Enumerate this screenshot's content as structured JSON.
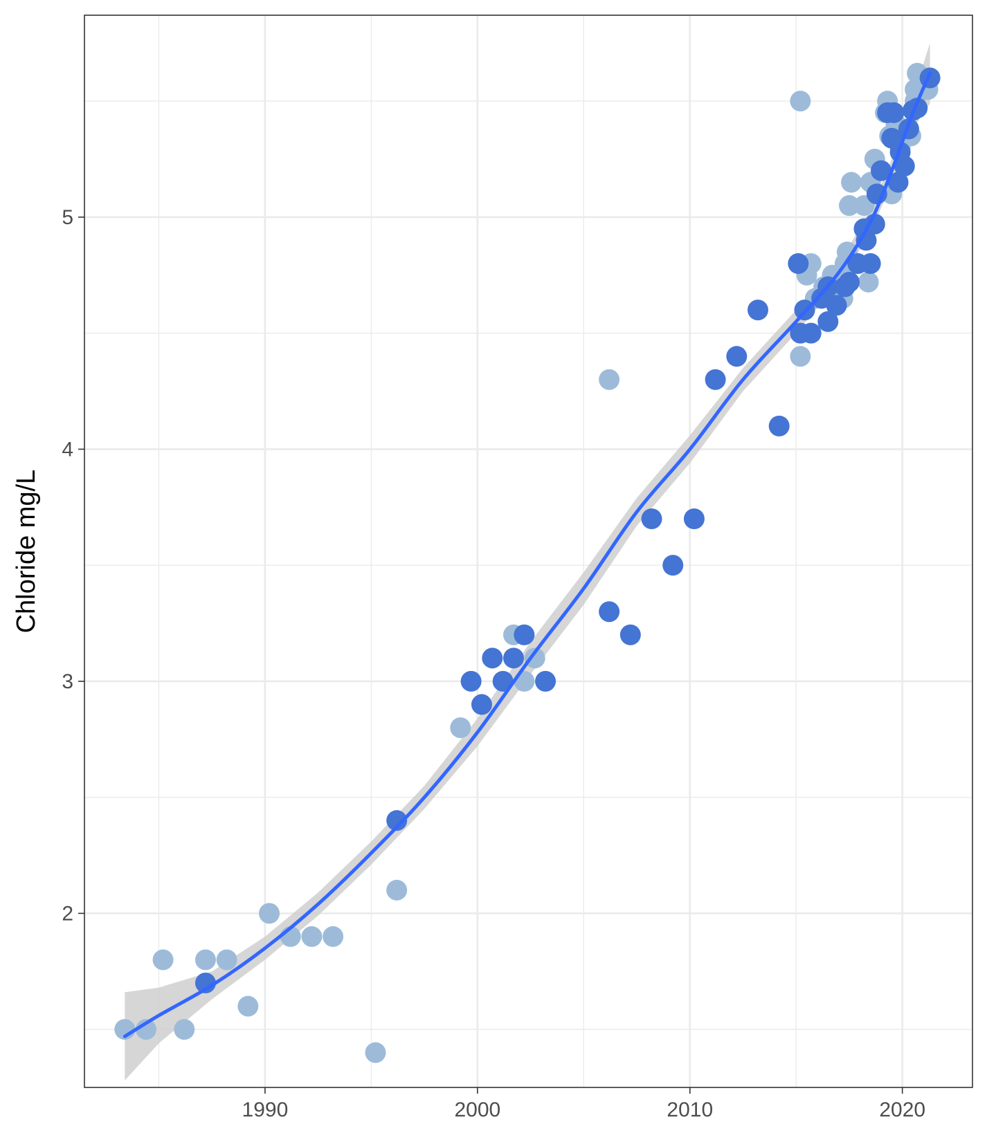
{
  "chart_data": {
    "type": "scatter",
    "title": "",
    "xlabel": "",
    "ylabel": "Chloride  mg/L",
    "xlim": [
      1981.5,
      2023.3
    ],
    "ylim": [
      1.25,
      5.87
    ],
    "x_ticks": [
      1990,
      2000,
      2010,
      2020
    ],
    "y_ticks": [
      2,
      3,
      4,
      5
    ],
    "x_tick_labels": [
      "1990",
      "2000",
      "2010",
      "2020"
    ],
    "y_tick_labels": [
      "2",
      "3",
      "4",
      "5"
    ],
    "grid": true,
    "legend": "none",
    "colors": {
      "point_light": "#9dbbd9",
      "point_dark": "#4474d4",
      "smooth_line": "#3366ff",
      "ribbon": "#cccccc",
      "grid": "#ebebeb",
      "border": "#333333"
    },
    "series": [
      {
        "color_key": "point_light",
        "points": [
          [
            1983.4,
            1.5
          ],
          [
            1984.4,
            1.5
          ],
          [
            1985.2,
            1.8
          ],
          [
            1986.2,
            1.5
          ],
          [
            1987.2,
            1.8
          ],
          [
            1988.2,
            1.8
          ],
          [
            1989.2,
            1.6
          ],
          [
            1990.2,
            2.0
          ],
          [
            1991.2,
            1.9
          ],
          [
            1992.2,
            1.9
          ],
          [
            1993.2,
            1.9
          ],
          [
            1995.2,
            1.4
          ],
          [
            1996.2,
            2.1
          ],
          [
            1999.2,
            2.8
          ],
          [
            2001.7,
            3.2
          ],
          [
            2002.2,
            3.0
          ],
          [
            2002.7,
            3.1
          ],
          [
            2006.2,
            4.3
          ],
          [
            2015.2,
            4.4
          ],
          [
            2015.2,
            5.5
          ],
          [
            2015.4,
            4.6
          ],
          [
            2015.5,
            4.75
          ],
          [
            2015.7,
            4.8
          ],
          [
            2015.9,
            4.65
          ],
          [
            2016.3,
            4.7
          ],
          [
            2016.7,
            4.75
          ],
          [
            2017.2,
            4.65
          ],
          [
            2017.3,
            4.8
          ],
          [
            2017.4,
            4.85
          ],
          [
            2017.5,
            5.05
          ],
          [
            2017.6,
            5.15
          ],
          [
            2018.2,
            5.05
          ],
          [
            2018.4,
            4.72
          ],
          [
            2018.5,
            5.15
          ],
          [
            2018.7,
            5.25
          ],
          [
            2019.2,
            5.45
          ],
          [
            2019.3,
            5.5
          ],
          [
            2019.4,
            5.35
          ],
          [
            2019.5,
            5.1
          ],
          [
            2019.7,
            5.4
          ],
          [
            2019.9,
            5.3
          ],
          [
            2020.4,
            5.35
          ],
          [
            2020.6,
            5.5
          ],
          [
            2020.6,
            5.55
          ],
          [
            2020.7,
            5.62
          ],
          [
            2021.0,
            5.6
          ],
          [
            2021.2,
            5.55
          ]
        ]
      },
      {
        "color_key": "point_dark",
        "points": [
          [
            1987.2,
            1.7
          ],
          [
            1996.2,
            2.4
          ],
          [
            1999.7,
            3.0
          ],
          [
            2000.2,
            2.9
          ],
          [
            2000.7,
            3.1
          ],
          [
            2001.2,
            3.0
          ],
          [
            2001.7,
            3.1
          ],
          [
            2002.2,
            3.2
          ],
          [
            2003.2,
            3.0
          ],
          [
            2006.2,
            3.3
          ],
          [
            2007.2,
            3.2
          ],
          [
            2008.2,
            3.7
          ],
          [
            2009.2,
            3.5
          ],
          [
            2010.2,
            3.7
          ],
          [
            2011.2,
            4.3
          ],
          [
            2012.2,
            4.4
          ],
          [
            2013.2,
            4.6
          ],
          [
            2014.2,
            4.1
          ],
          [
            2015.1,
            4.8
          ],
          [
            2015.2,
            4.5
          ],
          [
            2015.4,
            4.6
          ],
          [
            2015.7,
            4.5
          ],
          [
            2016.2,
            4.65
          ],
          [
            2016.5,
            4.55
          ],
          [
            2016.5,
            4.7
          ],
          [
            2016.9,
            4.62
          ],
          [
            2017.3,
            4.7
          ],
          [
            2017.5,
            4.72
          ],
          [
            2017.9,
            4.8
          ],
          [
            2018.2,
            4.95
          ],
          [
            2018.3,
            4.9
          ],
          [
            2018.5,
            4.8
          ],
          [
            2018.7,
            4.97
          ],
          [
            2018.8,
            5.1
          ],
          [
            2019.0,
            5.2
          ],
          [
            2019.3,
            5.45
          ],
          [
            2019.5,
            5.34
          ],
          [
            2019.6,
            5.45
          ],
          [
            2019.8,
            5.15
          ],
          [
            2019.9,
            5.28
          ],
          [
            2020.1,
            5.22
          ],
          [
            2020.3,
            5.38
          ],
          [
            2020.5,
            5.46
          ],
          [
            2020.7,
            5.47
          ],
          [
            2021.3,
            5.6
          ]
        ]
      }
    ],
    "smooth_fit": {
      "x": [
        1983.4,
        1985,
        1987.5,
        1990,
        1992.5,
        1995,
        1997.5,
        2000,
        2002.5,
        2005,
        2007.5,
        2010,
        2012.5,
        2015,
        2017,
        2018.5,
        2019.5,
        2020.5,
        2021.3
      ],
      "y": [
        1.47,
        1.56,
        1.69,
        1.85,
        2.04,
        2.26,
        2.5,
        2.78,
        3.1,
        3.4,
        3.73,
        4.0,
        4.3,
        4.55,
        4.76,
        4.98,
        5.2,
        5.45,
        5.62
      ],
      "ci_halfwidth": [
        0.19,
        0.12,
        0.06,
        0.05,
        0.05,
        0.05,
        0.05,
        0.06,
        0.07,
        0.07,
        0.06,
        0.06,
        0.05,
        0.05,
        0.04,
        0.05,
        0.05,
        0.07,
        0.13
      ]
    }
  }
}
